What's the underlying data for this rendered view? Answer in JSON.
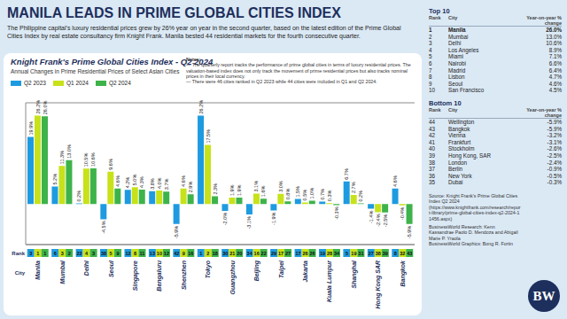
{
  "title": "MANILA LEADS IN PRIME GLOBAL CITIES INDEX",
  "subtitle": "The Philippine capital's luxury residential prices grew by 26% year on year in the second quarter, based on the latest edition of the Prime Global Cities Index by real estate consultancy firm Knight Frank. Manila bested 44 residential markets for the fourth consecutive quarter.",
  "chart_data": {
    "type": "bar",
    "title": "Knight Frank's Prime Global Cities Index - Q2 2024",
    "subtitle": "Annual Changes in Prime Residential Prices of Select Asian Cities",
    "notes": [
      "Notes:",
      "— The quarterly report tracks the performance of prime global cities in terms of luxury residential prices. The valuation-based index does not only track the movement of prime residential prices but also tracks nominal prices in their local currency.",
      "— There were 46 cities ranked in Q2 2023 while 44 cities were included in Q1 and Q2 2024."
    ],
    "rank_label": "Rank",
    "category_label": "City",
    "categories": [
      "Manila",
      "Mumbai",
      "Delhi",
      "Seoul",
      "Singapore",
      "Bengaluru",
      "Shenzhen",
      "Tokyo",
      "Guangzhou",
      "Beijing",
      "Taipei",
      "Jakarta",
      "Kuala Lumpur",
      "Shanghai",
      "Hong Kong SAR",
      "Bangkok"
    ],
    "series": [
      {
        "name": "Q2 2023",
        "color": "#1e9be0",
        "values": [
          19.9,
          5.2,
          0.2,
          -4.5,
          4.2,
          3.8,
          -5.9,
          26.2,
          -2.0,
          -3.1,
          -1.9,
          1.5,
          0.7,
          6.7,
          -1.4,
          4.6
        ],
        "value_labels": [
          "19.9%",
          "5.2%",
          "0.2%",
          "-4.5%",
          "4.2%",
          "3.8%",
          "-5.9%",
          "26.2%",
          "-2.0%",
          "-3.1%",
          "-1.9%",
          "1.5%",
          "0.7%",
          "6.7%",
          "-1.4%",
          "4.6%"
        ],
        "ranks": [
          3,
          6,
          22,
          38,
          12,
          13,
          42,
          1,
          30,
          34,
          29,
          17,
          19,
          5,
          27,
          8
        ]
      },
      {
        "name": "Q1 2024",
        "color": "#c7e21a",
        "values": [
          26.2,
          11.3,
          10.5,
          9.6,
          5.0,
          4.0,
          4.6,
          17.5,
          1.9,
          3.1,
          3.0,
          0.5,
          0.3,
          2.7,
          -2.4,
          -0.4
        ],
        "value_labels": [
          "26.2%",
          "11.3%",
          "10.5%",
          "9.6%",
          "5.0%",
          "4.0%",
          "4.6%",
          "17.5%",
          "1.9%",
          "3.1%",
          "3.0%",
          "0.5%",
          "0.3%",
          "2.7%",
          "-2.4%",
          "-0.4%"
        ],
        "ranks": [
          1,
          3,
          4,
          5,
          8,
          10,
          9,
          2,
          21,
          16,
          17,
          26,
          28,
          19,
          38,
          32
        ]
      },
      {
        "name": "Q2 2024",
        "color": "#3db34a",
        "values": [
          26.0,
          13.0,
          10.6,
          4.6,
          4.3,
          3.7,
          2.9,
          2.3,
          1.9,
          1.6,
          0.8,
          1.0,
          -0.3,
          0.2,
          -2.5,
          -5.9
        ],
        "value_labels": [
          "26.0%",
          "13.0%",
          "10.6%",
          "4.6%",
          "4.3%",
          "3.7%",
          "2.9%",
          "2.3%",
          "1.9%",
          "1.6%",
          "0.8%",
          "1.0%",
          "-0.3%",
          "0.2%",
          "-2.5%",
          "-5.9%"
        ],
        "ranks": [
          1,
          2,
          3,
          9,
          11,
          12,
          16,
          18,
          20,
          22,
          27,
          26,
          34,
          31,
          39,
          43
        ]
      }
    ],
    "ylim": [
      -12,
      30
    ],
    "yticks": [
      0
    ],
    "tick_labels": false,
    "data_labels": true,
    "grid": true,
    "legend": "top-left"
  },
  "tables": [
    {
      "title": "Top 10",
      "header": [
        "Rank",
        "City",
        "Year-on-year % change"
      ],
      "rows": [
        [
          "1",
          "Manila",
          "26.0%"
        ],
        [
          "2",
          "Mumbai",
          "13.0%"
        ],
        [
          "3",
          "Delhi",
          "10.6%"
        ],
        [
          "4",
          "Los Angeles",
          "8.9%"
        ],
        [
          "5",
          "Miami",
          "7.1%"
        ],
        [
          "6",
          "Nairobi",
          "6.6%"
        ],
        [
          "7",
          "Madrid",
          "6.4%"
        ],
        [
          "8",
          "Lisbon",
          "4.7%"
        ],
        [
          "9",
          "Seoul",
          "4.6%"
        ],
        [
          "10",
          "San Francisco",
          "4.5%"
        ]
      ]
    },
    {
      "title": "Bottom 10",
      "header": [
        "Rank",
        "City",
        "Year-on-year % change"
      ],
      "rows": [
        [
          "44",
          "Wellington",
          "-5.9%"
        ],
        [
          "43",
          "Bangkok",
          "-5.9%"
        ],
        [
          "42",
          "Vienna",
          "-3.2%"
        ],
        [
          "41",
          "Frankfurt",
          "-3.1%"
        ],
        [
          "40",
          "Stockholm",
          "-2.6%"
        ],
        [
          "39",
          "Hong Kong, SAR",
          "-2.5%"
        ],
        [
          "38",
          "London",
          "-2.4%"
        ],
        [
          "37",
          "Berlin",
          "-0.9%"
        ],
        [
          "36",
          "New York",
          "-0.5%"
        ],
        [
          "35",
          "Dubai",
          "-0.3%"
        ]
      ]
    }
  ],
  "footer": [
    "Source: Knight Frank's Prime Global Cities Index Q2 2024",
    "(https://www.knightfrank.com/research/report-library/prime-global-cities-index-q2-2024-11456.aspx)",
    "BusinessWorld Research: Kenn Kassandrae Paolo D. Mendoza and Abigail Marie P. Yraola",
    "BusinessWorld Graphics: Bong R. Fortin"
  ],
  "logo": "BW"
}
